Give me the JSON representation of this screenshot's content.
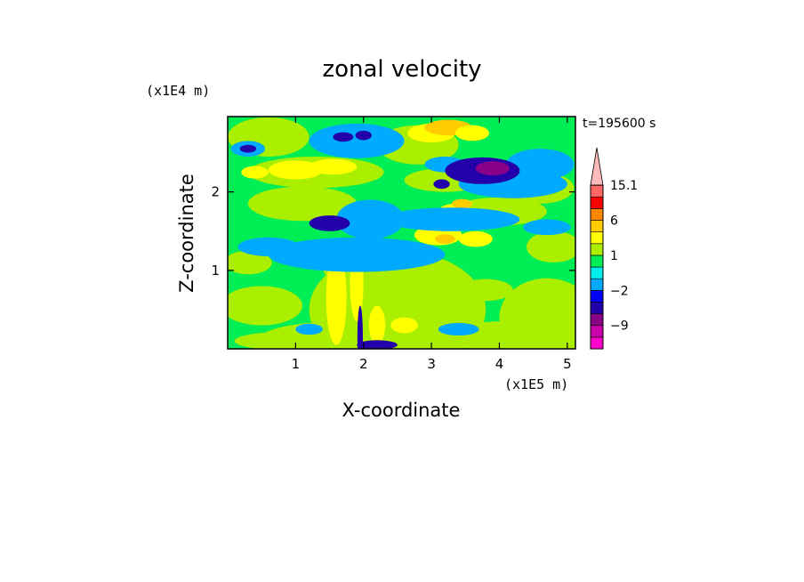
{
  "chart_data": {
    "type": "heatmap",
    "title": "zonal velocity",
    "xlabel": "X-coordinate",
    "ylabel": "Z-coordinate",
    "x_scale_label": "(x1E5 m)",
    "y_scale_label": "(x1E4 m)",
    "time_label": "t=195600 s",
    "xlim": [
      0,
      5.12
    ],
    "ylim": [
      0,
      2.96
    ],
    "x_ticks": [
      1,
      2,
      3,
      4,
      5
    ],
    "y_ticks": [
      1,
      2
    ],
    "colorbar": {
      "levels": [
        -15,
        -12,
        -9,
        -6,
        -3,
        -2,
        -1,
        0,
        1,
        2,
        3,
        6,
        9,
        12,
        15.1
      ],
      "colors": [
        "#ff00cc",
        "#cc00aa",
        "#880088",
        "#2200aa",
        "#0000ff",
        "#00aaff",
        "#00eeee",
        "#00ee55",
        "#aaee00",
        "#ffff00",
        "#ffcc00",
        "#ff8800",
        "#ff0000",
        "#ff6666",
        "#ffbbbb"
      ],
      "tick_labels": [
        "15.1",
        "6",
        "1",
        "-2",
        "-9"
      ],
      "tick_values": [
        15.1,
        6,
        1,
        -2,
        -9
      ],
      "extend": "max"
    },
    "field_background": 0.5,
    "features": [
      {
        "x": 2.5,
        "y": 0.5,
        "rx": 1.3,
        "ry": 0.75,
        "v": 1.5
      },
      {
        "x": 2.1,
        "y": 0.15,
        "rx": 1.6,
        "ry": 0.22,
        "v": 1.5
      },
      {
        "x": 4.7,
        "y": 0.4,
        "rx": 0.7,
        "ry": 0.5,
        "v": 1.5
      },
      {
        "x": 4.0,
        "y": 0.15,
        "rx": 0.7,
        "ry": 0.2,
        "v": 1.5
      },
      {
        "x": 0.5,
        "y": 0.55,
        "rx": 0.6,
        "ry": 0.25,
        "v": 1.5
      },
      {
        "x": 0.3,
        "y": 1.1,
        "rx": 0.35,
        "ry": 0.15,
        "v": 1.5
      },
      {
        "x": 0.9,
        "y": 0.1,
        "rx": 0.8,
        "ry": 0.12,
        "v": 1.5
      },
      {
        "x": 1.9,
        "y": 1.05,
        "rx": 0.5,
        "ry": 0.28,
        "v": 1.5
      },
      {
        "x": 3.8,
        "y": 0.75,
        "rx": 0.4,
        "ry": 0.14,
        "v": 1.5
      },
      {
        "x": 4.8,
        "y": 1.3,
        "rx": 0.4,
        "ry": 0.2,
        "v": 1.5
      },
      {
        "x": 1.1,
        "y": 1.85,
        "rx": 0.8,
        "ry": 0.22,
        "v": 1.5
      },
      {
        "x": 1.3,
        "y": 2.25,
        "rx": 1.0,
        "ry": 0.2,
        "v": 1.5
      },
      {
        "x": 3.2,
        "y": 2.15,
        "rx": 0.6,
        "ry": 0.15,
        "v": 1.5
      },
      {
        "x": 4.6,
        "y": 2.05,
        "rx": 0.5,
        "ry": 0.2,
        "v": 1.5
      },
      {
        "x": 4.0,
        "y": 1.75,
        "rx": 0.7,
        "ry": 0.18,
        "v": 1.5
      },
      {
        "x": 0.6,
        "y": 2.7,
        "rx": 0.6,
        "ry": 0.25,
        "v": 1.5
      },
      {
        "x": 2.8,
        "y": 2.6,
        "rx": 0.6,
        "ry": 0.25,
        "v": 1.5
      },
      {
        "x": 1.0,
        "y": 2.28,
        "rx": 0.4,
        "ry": 0.12,
        "v": 2.5
      },
      {
        "x": 1.55,
        "y": 2.32,
        "rx": 0.35,
        "ry": 0.1,
        "v": 2.5
      },
      {
        "x": 3.0,
        "y": 2.75,
        "rx": 0.35,
        "ry": 0.12,
        "v": 2.5
      },
      {
        "x": 3.25,
        "y": 2.82,
        "rx": 0.35,
        "ry": 0.1,
        "v": 4.5
      },
      {
        "x": 3.6,
        "y": 2.75,
        "rx": 0.25,
        "ry": 0.1,
        "v": 2.5
      },
      {
        "x": 3.1,
        "y": 1.45,
        "rx": 0.35,
        "ry": 0.13,
        "v": 2.5
      },
      {
        "x": 3.35,
        "y": 1.75,
        "rx": 0.25,
        "ry": 0.1,
        "v": 2.5
      },
      {
        "x": 3.65,
        "y": 1.4,
        "rx": 0.25,
        "ry": 0.1,
        "v": 2.5
      },
      {
        "x": 3.45,
        "y": 1.85,
        "rx": 0.15,
        "ry": 0.06,
        "v": 4.5
      },
      {
        "x": 3.2,
        "y": 1.4,
        "rx": 0.15,
        "ry": 0.06,
        "v": 4.5
      },
      {
        "x": 1.6,
        "y": 0.65,
        "rx": 0.15,
        "ry": 0.6,
        "v": 2.5
      },
      {
        "x": 1.9,
        "y": 0.85,
        "rx": 0.1,
        "ry": 0.5,
        "v": 2.5
      },
      {
        "x": 2.2,
        "y": 0.3,
        "rx": 0.12,
        "ry": 0.25,
        "v": 2.5
      },
      {
        "x": 2.6,
        "y": 0.3,
        "rx": 0.2,
        "ry": 0.1,
        "v": 2.5
      },
      {
        "x": 0.4,
        "y": 2.25,
        "rx": 0.2,
        "ry": 0.08,
        "v": 2.5
      },
      {
        "x": 1.9,
        "y": 2.65,
        "rx": 0.7,
        "ry": 0.22,
        "v": -1.5
      },
      {
        "x": 0.3,
        "y": 2.55,
        "rx": 0.25,
        "ry": 0.1,
        "v": -1.5
      },
      {
        "x": 4.6,
        "y": 2.35,
        "rx": 0.5,
        "ry": 0.2,
        "v": -1.5
      },
      {
        "x": 1.9,
        "y": 1.2,
        "rx": 1.3,
        "ry": 0.22,
        "v": -1.5
      },
      {
        "x": 3.3,
        "y": 1.65,
        "rx": 1.0,
        "ry": 0.15,
        "v": -1.5
      },
      {
        "x": 2.1,
        "y": 1.65,
        "rx": 0.5,
        "ry": 0.25,
        "v": -1.5
      },
      {
        "x": 4.7,
        "y": 1.55,
        "rx": 0.35,
        "ry": 0.1,
        "v": -1.5
      },
      {
        "x": 0.6,
        "y": 1.3,
        "rx": 0.45,
        "ry": 0.12,
        "v": -1.5
      },
      {
        "x": 4.2,
        "y": 2.1,
        "rx": 0.8,
        "ry": 0.18,
        "v": -1.5
      },
      {
        "x": 3.2,
        "y": 2.35,
        "rx": 0.3,
        "ry": 0.1,
        "v": -1.5
      },
      {
        "x": 3.4,
        "y": 0.25,
        "rx": 0.3,
        "ry": 0.08,
        "v": -1.5
      },
      {
        "x": 1.2,
        "y": 0.25,
        "rx": 0.2,
        "ry": 0.07,
        "v": -1.5
      },
      {
        "x": 0.3,
        "y": 2.55,
        "rx": 0.12,
        "ry": 0.05,
        "v": -5
      },
      {
        "x": 1.7,
        "y": 2.7,
        "rx": 0.15,
        "ry": 0.06,
        "v": -5
      },
      {
        "x": 2.0,
        "y": 2.72,
        "rx": 0.12,
        "ry": 0.06,
        "v": -5
      },
      {
        "x": 1.5,
        "y": 1.6,
        "rx": 0.3,
        "ry": 0.1,
        "v": -5
      },
      {
        "x": 3.15,
        "y": 2.1,
        "rx": 0.12,
        "ry": 0.06,
        "v": -5
      },
      {
        "x": 3.75,
        "y": 2.27,
        "rx": 0.55,
        "ry": 0.17,
        "v": -5
      },
      {
        "x": 3.9,
        "y": 2.3,
        "rx": 0.25,
        "ry": 0.09,
        "v": -8
      },
      {
        "x": 2.2,
        "y": 0.05,
        "rx": 0.3,
        "ry": 0.06,
        "v": -5
      },
      {
        "x": 1.95,
        "y": 0.15,
        "rx": 0.04,
        "ry": 0.4,
        "v": -5
      }
    ]
  }
}
